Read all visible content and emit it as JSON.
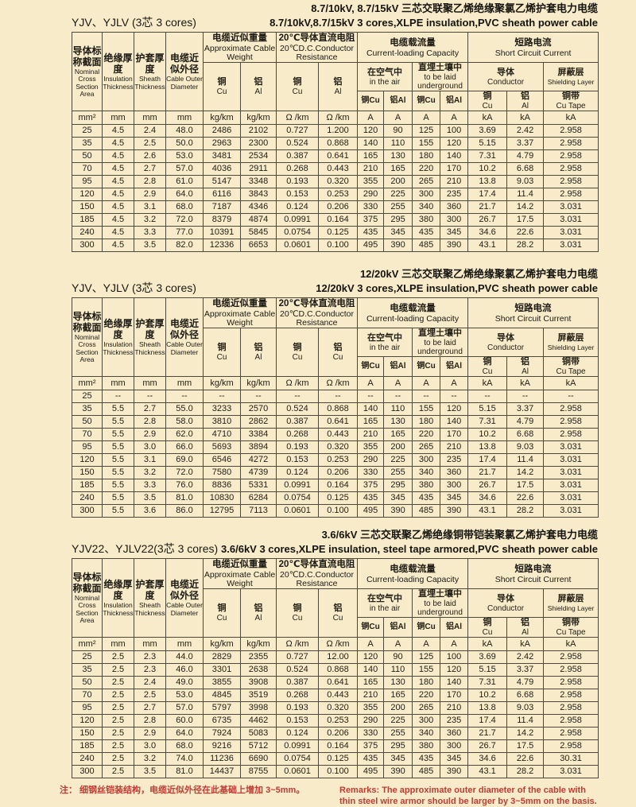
{
  "header": {
    "nominal_zh": "导体标称截面",
    "nominal_en": "Nominal Cross Section Area",
    "insulation_zh": "绝缘厚度",
    "insulation_en": "Insulation Thickness",
    "sheath_zh": "护套厚度",
    "sheath_en": "Sheath Thickness",
    "diameter_zh": "电缆近似外径",
    "diameter_en": "Cable Outer Diameter",
    "weight_zh": "电缆近似重量",
    "weight_en": "Approximate Cable Weight",
    "resist_zh": "20℃导体直流电阻",
    "resist_en": "20℃D.C.Conductor Resistance",
    "capacity_zh": "电缆载流量",
    "capacity_en": "Current-loading Capacity",
    "air_zh": "在空气中",
    "air_en": "in the air",
    "underground_zh": "直埋土壤中",
    "underground_en": "to be laid underground",
    "short_zh": "短路电流",
    "short_en": "Short  Circuit Current",
    "conductor_zh": "导体",
    "conductor_en": "Conductor",
    "shield_zh": "屏蔽层",
    "shield_en": "Shielding Layer",
    "cu_zh": "铜",
    "cu_en": "Cu",
    "al_zh": "铝",
    "al_en": "Al",
    "cu_inline": "铜Cu",
    "al_inline": "铝Al",
    "cutape_zh": "铜带",
    "cutape_en": "Cu Tape",
    "units": [
      "mm²",
      "mm",
      "mm",
      "mm",
      "kg/km",
      "kg/km",
      "Ω /km",
      "Ω /km",
      "A",
      "A",
      "A",
      "A",
      "kA",
      "kA",
      "kA"
    ]
  },
  "tables": [
    {
      "series": "YJV、YJLV (3芯 3 cores)",
      "title_zh": "8.7/10kV, 8.7/15kV 三芯交联聚乙烯绝缘聚氯乙烯护套电力电缆",
      "title_en": "8.7/10kV,8.7/15kV 3 cores,XLPE insulation,PVC sheath power cable",
      "res_al_en": "Al",
      "rows": [
        [
          "25",
          "4.5",
          "2.4",
          "48.0",
          "2486",
          "2102",
          "0.727",
          "1.200",
          "120",
          "90",
          "125",
          "100",
          "3.69",
          "2.42",
          "2.958"
        ],
        [
          "35",
          "4.5",
          "2.5",
          "50.0",
          "2963",
          "2300",
          "0.524",
          "0.868",
          "140",
          "110",
          "155",
          "120",
          "5.15",
          "3.37",
          "2.958"
        ],
        [
          "50",
          "4.5",
          "2.6",
          "53.0",
          "3481",
          "2534",
          "0.387",
          "0.641",
          "165",
          "130",
          "180",
          "140",
          "7.31",
          "4.79",
          "2.958"
        ],
        [
          "70",
          "4.5",
          "2.7",
          "57.0",
          "4036",
          "2911",
          "0.268",
          "0.443",
          "210",
          "165",
          "220",
          "170",
          "10.2",
          "6.68",
          "2.958"
        ],
        [
          "95",
          "4.5",
          "2.8",
          "61.0",
          "5147",
          "3348",
          "0.193",
          "0.320",
          "355",
          "200",
          "265",
          "210",
          "13.8",
          "9.03",
          "2.958"
        ],
        [
          "120",
          "4.5",
          "2.9",
          "64.0",
          "6116",
          "3843",
          "0.153",
          "0.253",
          "290",
          "225",
          "300",
          "235",
          "17.4",
          "11.4",
          "2.958"
        ],
        [
          "150",
          "4.5",
          "3.1",
          "68.0",
          "7187",
          "4346",
          "0.124",
          "0.206",
          "330",
          "255",
          "340",
          "360",
          "21.7",
          "14.2",
          "3.031"
        ],
        [
          "185",
          "4.5",
          "3.2",
          "72.0",
          "8379",
          "4874",
          "0.0991",
          "0.164",
          "375",
          "295",
          "380",
          "300",
          "26.7",
          "17.5",
          "3.031"
        ],
        [
          "240",
          "4.5",
          "3.3",
          "77.0",
          "10391",
          "5845",
          "0.0754",
          "0.125",
          "435",
          "345",
          "435",
          "345",
          "34.6",
          "22.6",
          "3.031"
        ],
        [
          "300",
          "4.5",
          "3.5",
          "82.0",
          "12336",
          "6653",
          "0.0601",
          "0.100",
          "495",
          "390",
          "485",
          "390",
          "43.1",
          "28.2",
          "3.031"
        ]
      ]
    },
    {
      "series": "YJV、YJLV (3芯 3 cores)",
      "title_zh": "12/20kV 三芯交联聚乙烯绝缘聚氯乙烯护套电力电缆",
      "title_en": "12/20kV 3 cores,XLPE insulation,PVC sheath power cable",
      "res_al_en": "Cu",
      "rows": [
        [
          "25",
          "--",
          "--",
          "--",
          "--",
          "--",
          "--",
          "--",
          "--",
          "--",
          "--",
          "--",
          "--",
          "--",
          "--"
        ],
        [
          "35",
          "5.5",
          "2.7",
          "55.0",
          "3233",
          "2570",
          "0.524",
          "0.868",
          "140",
          "110",
          "155",
          "120",
          "5.15",
          "3.37",
          "2.958"
        ],
        [
          "50",
          "5.5",
          "2.8",
          "58.0",
          "3810",
          "2862",
          "0.387",
          "0.641",
          "165",
          "130",
          "180",
          "140",
          "7.31",
          "4.79",
          "2.958"
        ],
        [
          "70",
          "5.5",
          "2.9",
          "62.0",
          "4710",
          "3384",
          "0.268",
          "0.443",
          "210",
          "165",
          "220",
          "170",
          "10.2",
          "6.68",
          "2.958"
        ],
        [
          "95",
          "5.5",
          "3.0",
          "66.0",
          "5693",
          "3894",
          "0.193",
          "0.320",
          "355",
          "200",
          "265",
          "210",
          "13.8",
          "9.03",
          "3.031"
        ],
        [
          "120",
          "5.5",
          "3.1",
          "69.0",
          "6546",
          "4272",
          "0.153",
          "0.253",
          "290",
          "225",
          "300",
          "235",
          "17.4",
          "11.4",
          "3.031"
        ],
        [
          "150",
          "5.5",
          "3.2",
          "72.0",
          "7580",
          "4739",
          "0.124",
          "0.206",
          "330",
          "255",
          "340",
          "360",
          "21.7",
          "14.2",
          "3.031"
        ],
        [
          "185",
          "5.5",
          "3.3",
          "76.0",
          "8836",
          "5331",
          "0.0991",
          "0.164",
          "375",
          "295",
          "380",
          "300",
          "26.7",
          "17.5",
          "3.031"
        ],
        [
          "240",
          "5.5",
          "3.5",
          "81.0",
          "10830",
          "6284",
          "0.0754",
          "0.125",
          "435",
          "345",
          "435",
          "345",
          "34.6",
          "22.6",
          "3.031"
        ],
        [
          "300",
          "5.5",
          "3.6",
          "86.0",
          "12795",
          "7113",
          "0.0601",
          "0.100",
          "495",
          "390",
          "485",
          "390",
          "43.1",
          "28.2",
          "3.031"
        ]
      ]
    },
    {
      "series": "YJV22、YJLV22(3芯 3 cores)",
      "title_zh": "3.6/6kV 三芯交联聚乙烯绝缘铜带铠装聚氯乙烯护套电力电缆",
      "title_en": "3.6/6kV 3 cores,XLPE insulation, steel tape armored,PVC sheath power cable",
      "res_al_en": "Cu",
      "rows": [
        [
          "25",
          "2.5",
          "2.3",
          "44.0",
          "2829",
          "2355",
          "0.727",
          "12.00",
          "120",
          "90",
          "125",
          "100",
          "3.69",
          "2.42",
          "2.958"
        ],
        [
          "35",
          "2.5",
          "2.3",
          "46.0",
          "3301",
          "2638",
          "0.524",
          "0.868",
          "140",
          "110",
          "155",
          "120",
          "5.15",
          "3.37",
          "2.958"
        ],
        [
          "50",
          "2.5",
          "2.4",
          "49.0",
          "3855",
          "3908",
          "0.387",
          "0.641",
          "165",
          "130",
          "180",
          "140",
          "7.31",
          "4.79",
          "2.958"
        ],
        [
          "70",
          "2.5",
          "2.5",
          "53.0",
          "4845",
          "3519",
          "0.268",
          "0.443",
          "210",
          "165",
          "220",
          "170",
          "10.2",
          "6.68",
          "2.958"
        ],
        [
          "95",
          "2.5",
          "2.7",
          "57.0",
          "5797",
          "3998",
          "0.193",
          "0.320",
          "355",
          "200",
          "265",
          "210",
          "13.8",
          "9.03",
          "2.958"
        ],
        [
          "120",
          "2.5",
          "2.8",
          "60.0",
          "6735",
          "4462",
          "0.153",
          "0.253",
          "290",
          "225",
          "300",
          "235",
          "17.4",
          "11.4",
          "2.958"
        ],
        [
          "150",
          "2.5",
          "2.9",
          "64.0",
          "7924",
          "5083",
          "0.124",
          "0.206",
          "330",
          "255",
          "340",
          "360",
          "21.7",
          "14.2",
          "2.958"
        ],
        [
          "185",
          "2.5",
          "3.0",
          "68.0",
          "9216",
          "5712",
          "0.0991",
          "0.164",
          "375",
          "295",
          "380",
          "300",
          "26.7",
          "17.5",
          "2.958"
        ],
        [
          "240",
          "2.5",
          "3.2",
          "74.0",
          "11236",
          "6690",
          "0.0754",
          "0.125",
          "435",
          "345",
          "435",
          "345",
          "34.6",
          "22.6",
          "30.31"
        ],
        [
          "300",
          "2.5",
          "3.5",
          "81.0",
          "14437",
          "8755",
          "0.0601",
          "0.100",
          "495",
          "390",
          "485",
          "390",
          "43.1",
          "28.2",
          "3.031"
        ]
      ]
    }
  ],
  "note": {
    "zh": "注：  细钢丝铠装结构，电缆近似外径在此基础上增加 3~5mm。",
    "en": "Remarks:  The approximate  outer diameter of the cable with thin steel wire armor should be larger by 3~5mm on the basis."
  }
}
